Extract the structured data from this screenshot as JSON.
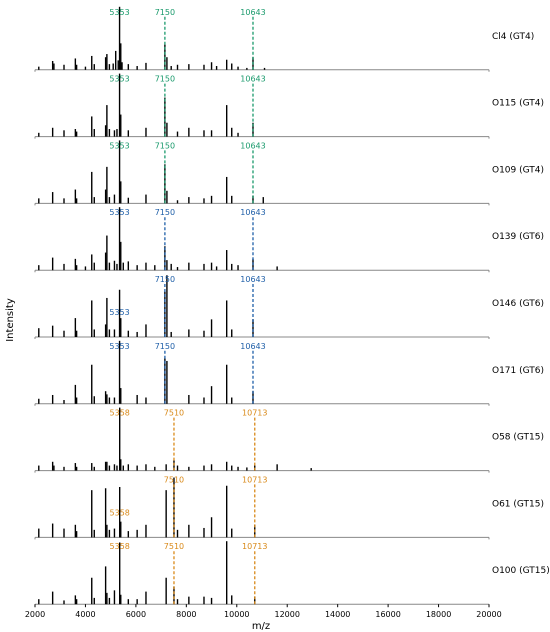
{
  "chart_data": {
    "type": "bar",
    "xlabel": "m/z",
    "ylabel": "Intensity",
    "xlim": [
      2000,
      20000
    ],
    "xticks": [
      2000,
      4000,
      6000,
      8000,
      10000,
      12000,
      14000,
      16000,
      18000,
      20000
    ],
    "colors": {
      "GT4": "#1a9a6c",
      "GT6": "#1f5fa8",
      "GT15": "#d98a1a",
      "bar": "#000000",
      "axis": "#888888"
    },
    "panels": [
      {
        "label": "Cl4 (GT4)",
        "group": "GT4",
        "markers": [
          {
            "label": "5353",
            "x": 5353
          },
          {
            "label": "7150",
            "x": 7150
          },
          {
            "label": "10643",
            "x": 10643
          }
        ],
        "peaks": [
          [
            2150,
            0.05
          ],
          [
            2700,
            0.14
          ],
          [
            2750,
            0.1
          ],
          [
            3150,
            0.08
          ],
          [
            3600,
            0.18
          ],
          [
            3650,
            0.08
          ],
          [
            4000,
            0.05
          ],
          [
            4250,
            0.22
          ],
          [
            4350,
            0.09
          ],
          [
            4800,
            0.2
          ],
          [
            4850,
            0.25
          ],
          [
            4950,
            0.09
          ],
          [
            5100,
            0.1
          ],
          [
            5200,
            0.3
          ],
          [
            5300,
            0.15
          ],
          [
            5353,
            1.0
          ],
          [
            5400,
            0.42
          ],
          [
            5450,
            0.12
          ],
          [
            5700,
            0.09
          ],
          [
            6050,
            0.06
          ],
          [
            6400,
            0.11
          ],
          [
            7150,
            0.4
          ],
          [
            7230,
            0.2
          ],
          [
            7400,
            0.06
          ],
          [
            7650,
            0.08
          ],
          [
            8100,
            0.09
          ],
          [
            8700,
            0.08
          ],
          [
            9000,
            0.12
          ],
          [
            9200,
            0.06
          ],
          [
            9600,
            0.16
          ],
          [
            9800,
            0.1
          ],
          [
            10050,
            0.05
          ],
          [
            10400,
            0.03
          ],
          [
            10643,
            0.2
          ],
          [
            11100,
            0.03
          ]
        ]
      },
      {
        "label": "O115 (GT4)",
        "group": "GT4",
        "markers": [
          {
            "label": "5353",
            "x": 5353
          },
          {
            "label": "7150",
            "x": 7150
          },
          {
            "label": "10643",
            "x": 10643
          }
        ],
        "peaks": [
          [
            2150,
            0.06
          ],
          [
            2700,
            0.14
          ],
          [
            3150,
            0.1
          ],
          [
            3600,
            0.12
          ],
          [
            3650,
            0.08
          ],
          [
            4250,
            0.32
          ],
          [
            4350,
            0.12
          ],
          [
            4800,
            0.18
          ],
          [
            4850,
            0.5
          ],
          [
            4950,
            0.12
          ],
          [
            5150,
            0.1
          ],
          [
            5250,
            0.12
          ],
          [
            5353,
            1.0
          ],
          [
            5400,
            0.35
          ],
          [
            5700,
            0.1
          ],
          [
            6400,
            0.14
          ],
          [
            7150,
            0.62
          ],
          [
            7230,
            0.22
          ],
          [
            7650,
            0.08
          ],
          [
            8100,
            0.14
          ],
          [
            8700,
            0.1
          ],
          [
            9000,
            0.1
          ],
          [
            9600,
            0.5
          ],
          [
            9800,
            0.14
          ],
          [
            10050,
            0.06
          ],
          [
            10643,
            0.22
          ]
        ]
      },
      {
        "label": "O109 (GT4)",
        "group": "GT4",
        "markers": [
          {
            "label": "5353",
            "x": 5353
          },
          {
            "label": "7150",
            "x": 7150
          },
          {
            "label": "10643",
            "x": 10643
          }
        ],
        "peaks": [
          [
            2150,
            0.08
          ],
          [
            2700,
            0.18
          ],
          [
            3150,
            0.08
          ],
          [
            3600,
            0.22
          ],
          [
            3650,
            0.08
          ],
          [
            4250,
            0.5
          ],
          [
            4350,
            0.1
          ],
          [
            4800,
            0.22
          ],
          [
            4850,
            0.58
          ],
          [
            4950,
            0.1
          ],
          [
            5150,
            0.14
          ],
          [
            5353,
            1.0
          ],
          [
            5400,
            0.35
          ],
          [
            5700,
            0.09
          ],
          [
            6400,
            0.14
          ],
          [
            7150,
            0.62
          ],
          [
            7230,
            0.2
          ],
          [
            7650,
            0.05
          ],
          [
            8100,
            0.1
          ],
          [
            8700,
            0.08
          ],
          [
            9000,
            0.12
          ],
          [
            9600,
            0.42
          ],
          [
            9800,
            0.12
          ],
          [
            10643,
            0.12
          ],
          [
            11050,
            0.1
          ]
        ]
      },
      {
        "label": "O139 (GT6)",
        "group": "GT6",
        "markers": [
          {
            "label": "5353",
            "x": 5353
          },
          {
            "label": "7150",
            "x": 7150
          },
          {
            "label": "10643",
            "x": 10643
          }
        ],
        "peaks": [
          [
            2150,
            0.08
          ],
          [
            2700,
            0.2
          ],
          [
            3150,
            0.1
          ],
          [
            3600,
            0.18
          ],
          [
            3650,
            0.08
          ],
          [
            4000,
            0.06
          ],
          [
            4250,
            0.25
          ],
          [
            4350,
            0.12
          ],
          [
            4800,
            0.28
          ],
          [
            4850,
            0.55
          ],
          [
            4950,
            0.12
          ],
          [
            5150,
            0.15
          ],
          [
            5250,
            0.1
          ],
          [
            5353,
            1.0
          ],
          [
            5400,
            0.45
          ],
          [
            5500,
            0.12
          ],
          [
            5700,
            0.14
          ],
          [
            6050,
            0.08
          ],
          [
            6400,
            0.12
          ],
          [
            6750,
            0.08
          ],
          [
            7150,
            0.38
          ],
          [
            7230,
            0.16
          ],
          [
            7400,
            0.1
          ],
          [
            7650,
            0.05
          ],
          [
            8100,
            0.12
          ],
          [
            8700,
            0.1
          ],
          [
            9000,
            0.12
          ],
          [
            9200,
            0.06
          ],
          [
            9600,
            0.32
          ],
          [
            9800,
            0.1
          ],
          [
            10050,
            0.08
          ],
          [
            10643,
            0.18
          ],
          [
            11600,
            0.06
          ]
        ]
      },
      {
        "label": "O146 (GT6)",
        "group": "GT6",
        "markers": [
          {
            "label": "5353",
            "x": 5353
          },
          {
            "label": "7150",
            "x": 7150
          },
          {
            "label": "10643",
            "x": 10643
          }
        ],
        "peaks": [
          [
            2150,
            0.14
          ],
          [
            2700,
            0.18
          ],
          [
            3150,
            0.1
          ],
          [
            3600,
            0.3
          ],
          [
            3650,
            0.1
          ],
          [
            4250,
            0.58
          ],
          [
            4350,
            0.12
          ],
          [
            4800,
            0.2
          ],
          [
            4850,
            0.62
          ],
          [
            4950,
            0.12
          ],
          [
            5150,
            0.12
          ],
          [
            5353,
            0.75
          ],
          [
            5400,
            0.3
          ],
          [
            5700,
            0.1
          ],
          [
            6050,
            0.08
          ],
          [
            6400,
            0.2
          ],
          [
            7150,
            0.72
          ],
          [
            7230,
            0.98
          ],
          [
            7400,
            0.08
          ],
          [
            8100,
            0.12
          ],
          [
            8700,
            0.1
          ],
          [
            9000,
            0.28
          ],
          [
            9600,
            0.58
          ],
          [
            9800,
            0.12
          ],
          [
            10643,
            0.28
          ]
        ]
      },
      {
        "label": "O171 (GT6)",
        "group": "GT6",
        "markers": [
          {
            "label": "5353",
            "x": 5353
          },
          {
            "label": "7150",
            "x": 7150
          },
          {
            "label": "10643",
            "x": 10643
          }
        ],
        "peaks": [
          [
            2150,
            0.08
          ],
          [
            2700,
            0.14
          ],
          [
            3150,
            0.06
          ],
          [
            3600,
            0.3
          ],
          [
            3650,
            0.1
          ],
          [
            4250,
            0.62
          ],
          [
            4350,
            0.12
          ],
          [
            4800,
            0.2
          ],
          [
            4850,
            0.15
          ],
          [
            4950,
            0.1
          ],
          [
            5150,
            0.1
          ],
          [
            5353,
            1.0
          ],
          [
            5400,
            0.25
          ],
          [
            6050,
            0.14
          ],
          [
            6400,
            0.1
          ],
          [
            7150,
            0.72
          ],
          [
            7230,
            0.68
          ],
          [
            8100,
            0.14
          ],
          [
            8700,
            0.1
          ],
          [
            9000,
            0.28
          ],
          [
            9600,
            0.62
          ],
          [
            9800,
            0.1
          ],
          [
            10643,
            0.2
          ]
        ]
      },
      {
        "label": "O58 (GT15)",
        "group": "GT15",
        "markers": [
          {
            "label": "5358",
            "x": 5358
          },
          {
            "label": "7510",
            "x": 7510
          },
          {
            "label": "10713",
            "x": 10713
          }
        ],
        "peaks": [
          [
            2150,
            0.08
          ],
          [
            2700,
            0.14
          ],
          [
            2750,
            0.08
          ],
          [
            3150,
            0.06
          ],
          [
            3600,
            0.12
          ],
          [
            3650,
            0.06
          ],
          [
            4250,
            0.12
          ],
          [
            4350,
            0.06
          ],
          [
            4800,
            0.14
          ],
          [
            4850,
            0.14
          ],
          [
            4950,
            0.08
          ],
          [
            5150,
            0.1
          ],
          [
            5250,
            0.08
          ],
          [
            5358,
            1.0
          ],
          [
            5400,
            0.18
          ],
          [
            5500,
            0.08
          ],
          [
            5700,
            0.1
          ],
          [
            6050,
            0.08
          ],
          [
            6400,
            0.1
          ],
          [
            6750,
            0.06
          ],
          [
            7200,
            0.1
          ],
          [
            7510,
            0.16
          ],
          [
            7650,
            0.08
          ],
          [
            8100,
            0.06
          ],
          [
            8700,
            0.08
          ],
          [
            9000,
            0.1
          ],
          [
            9600,
            0.14
          ],
          [
            9800,
            0.08
          ],
          [
            10050,
            0.06
          ],
          [
            10400,
            0.05
          ],
          [
            10713,
            0.08
          ],
          [
            11600,
            0.1
          ],
          [
            12950,
            0.04
          ]
        ]
      },
      {
        "label": "O61 (GT15)",
        "group": "GT15",
        "markers": [
          {
            "label": "5358",
            "x": 5358
          },
          {
            "label": "7510",
            "x": 7510
          },
          {
            "label": "10713",
            "x": 10713
          }
        ],
        "peaks": [
          [
            2150,
            0.14
          ],
          [
            2700,
            0.22
          ],
          [
            3150,
            0.14
          ],
          [
            3600,
            0.2
          ],
          [
            3650,
            0.1
          ],
          [
            4250,
            0.75
          ],
          [
            4350,
            0.12
          ],
          [
            4800,
            0.78
          ],
          [
            4850,
            0.2
          ],
          [
            4950,
            0.12
          ],
          [
            5150,
            0.14
          ],
          [
            5358,
            0.8
          ],
          [
            5400,
            0.25
          ],
          [
            5700,
            0.1
          ],
          [
            6050,
            0.12
          ],
          [
            6400,
            0.2
          ],
          [
            7200,
            0.75
          ],
          [
            7510,
            0.95
          ],
          [
            7650,
            0.12
          ],
          [
            8100,
            0.2
          ],
          [
            8700,
            0.15
          ],
          [
            9000,
            0.32
          ],
          [
            9600,
            0.82
          ],
          [
            9800,
            0.14
          ],
          [
            10713,
            0.2
          ]
        ]
      },
      {
        "label": "O100 (GT15)",
        "group": "GT15",
        "markers": [
          {
            "label": "5358",
            "x": 5358
          },
          {
            "label": "7510",
            "x": 7510
          },
          {
            "label": "10713",
            "x": 10713
          }
        ],
        "peaks": [
          [
            2150,
            0.08
          ],
          [
            2700,
            0.2
          ],
          [
            3150,
            0.06
          ],
          [
            3600,
            0.14
          ],
          [
            3650,
            0.08
          ],
          [
            4250,
            0.42
          ],
          [
            4350,
            0.1
          ],
          [
            4800,
            0.6
          ],
          [
            4850,
            0.18
          ],
          [
            4950,
            0.1
          ],
          [
            5150,
            0.22
          ],
          [
            5358,
            0.98
          ],
          [
            5400,
            0.15
          ],
          [
            5700,
            0.08
          ],
          [
            6050,
            0.08
          ],
          [
            6400,
            0.2
          ],
          [
            7200,
            0.42
          ],
          [
            7510,
            0.28
          ],
          [
            7650,
            0.08
          ],
          [
            8100,
            0.12
          ],
          [
            8700,
            0.12
          ],
          [
            9000,
            0.1
          ],
          [
            9600,
            1.0
          ],
          [
            9800,
            0.14
          ],
          [
            10713,
            0.12
          ]
        ]
      }
    ]
  }
}
